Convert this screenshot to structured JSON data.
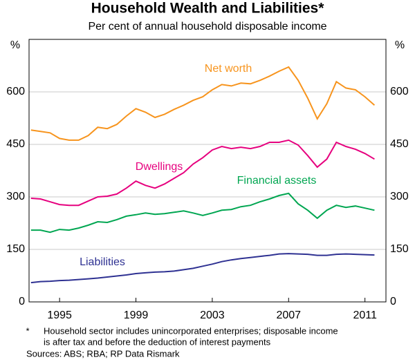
{
  "chart_data": {
    "type": "line",
    "title": "Household Wealth and Liabilities*",
    "subtitle": "Per cent of annual household disposable income",
    "ylabel": "%",
    "y2label": "%",
    "x": [
      1993.5,
      1994,
      1994.5,
      1995,
      1995.5,
      1996,
      1996.5,
      1997,
      1997.5,
      1998,
      1998.5,
      1999,
      1999.5,
      2000,
      2000.5,
      2001,
      2001.5,
      2002,
      2002.5,
      2003,
      2003.5,
      2004,
      2004.5,
      2005,
      2005.5,
      2006,
      2006.5,
      2007,
      2007.5,
      2008,
      2008.5,
      2009,
      2009.5,
      2010,
      2010.5,
      2011,
      2011.5
    ],
    "xlim": [
      1993.4,
      2012.1
    ],
    "xticks": [
      1995,
      1999,
      2003,
      2007,
      2011
    ],
    "ylim": [
      0,
      750
    ],
    "yticks": [
      0,
      150,
      300,
      450,
      600
    ],
    "grid": true,
    "series": [
      {
        "name": "Net worth",
        "color": "#f7941d",
        "values": [
          491,
          487,
          483,
          467,
          462,
          462,
          475,
          499,
          495,
          507,
          531,
          552,
          542,
          527,
          536,
          550,
          562,
          576,
          586,
          606,
          621,
          617,
          625,
          623,
          633,
          645,
          659,
          671,
          633,
          582,
          523,
          566,
          629,
          611,
          606,
          586,
          562
        ]
      },
      {
        "name": "Dwellings",
        "color": "#e6007e",
        "values": [
          296,
          294,
          286,
          278,
          276,
          276,
          288,
          300,
          302,
          308,
          325,
          345,
          333,
          325,
          337,
          353,
          369,
          394,
          412,
          434,
          444,
          438,
          442,
          438,
          444,
          456,
          456,
          462,
          448,
          418,
          385,
          408,
          456,
          444,
          436,
          424,
          408
        ]
      },
      {
        "name": "Financial assets",
        "color": "#00a651",
        "values": [
          205,
          205,
          199,
          207,
          205,
          211,
          219,
          229,
          227,
          235,
          245,
          249,
          254,
          250,
          252,
          256,
          260,
          254,
          247,
          254,
          262,
          264,
          272,
          276,
          286,
          294,
          304,
          310,
          280,
          262,
          239,
          262,
          276,
          270,
          274,
          268,
          262
        ]
      },
      {
        "name": "Liabilities",
        "color": "#2e3192",
        "values": [
          55,
          58,
          59,
          61,
          62,
          64,
          66,
          68,
          71,
          74,
          77,
          81,
          83,
          85,
          86,
          88,
          92,
          96,
          102,
          108,
          115,
          120,
          124,
          127,
          130,
          133,
          137,
          138,
          137,
          136,
          133,
          133,
          136,
          137,
          136,
          135,
          134
        ]
      }
    ],
    "note_marker": "*",
    "notes": [
      "Household sector includes unincorporated enterprises; disposable income",
      "is after tax and before the deduction of interest payments"
    ],
    "sources": "Sources:  ABS;  RBA; RP Data Rismark"
  }
}
